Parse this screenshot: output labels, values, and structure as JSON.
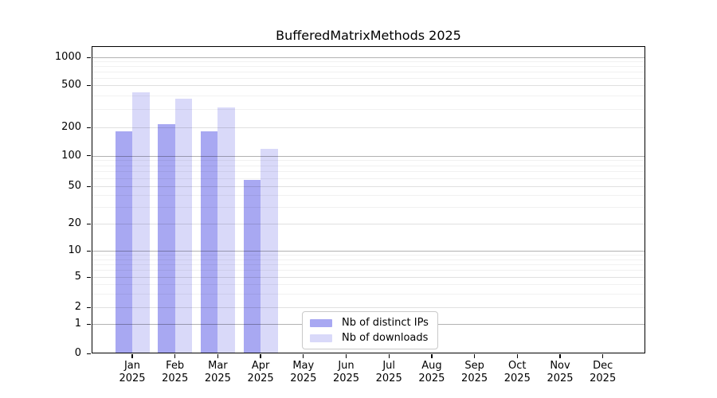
{
  "figure": {
    "background": "#ffffff"
  },
  "chart_data": {
    "type": "bar",
    "title": "BufferedMatrixMethods 2025",
    "categories": [
      "Jan",
      "Feb",
      "Mar",
      "Apr",
      "May",
      "Jun",
      "Jul",
      "Aug",
      "Sep",
      "Oct",
      "Nov",
      "Dec"
    ],
    "x_tick_year": "2025",
    "series": [
      {
        "name": "Nb of distinct IPs",
        "color": "#a8a8f2",
        "values": [
          180,
          215,
          180,
          58,
          null,
          null,
          null,
          null,
          null,
          null,
          null,
          null
        ]
      },
      {
        "name": "Nb of downloads",
        "color": "#d9d9f9",
        "values": [
          430,
          370,
          310,
          117,
          null,
          null,
          null,
          null,
          null,
          null,
          null,
          null
        ]
      }
    ],
    "y_axis": {
      "scale": "pseudo-log",
      "ticks": [
        0,
        1,
        2,
        5,
        10,
        20,
        50,
        100,
        200,
        500,
        1000
      ],
      "range_top": 1200
    },
    "grid": {
      "decade_lines": [
        1,
        10,
        100,
        1000
      ],
      "mid_lines": [
        2,
        5,
        20,
        50,
        200,
        500
      ],
      "minor_lines": [
        3,
        4,
        6,
        7,
        8,
        9,
        30,
        40,
        60,
        70,
        80,
        90,
        300,
        400,
        600,
        700,
        800,
        900
      ],
      "decade_color": "rgba(0,0,0,0.30)",
      "mid_color": "rgba(0,0,0,0.12)",
      "minor_color": "rgba(0,0,0,0.055)"
    },
    "legend": {
      "position": "lower-center",
      "entries": [
        "Nb of distinct IPs",
        "Nb of downloads"
      ]
    }
  }
}
